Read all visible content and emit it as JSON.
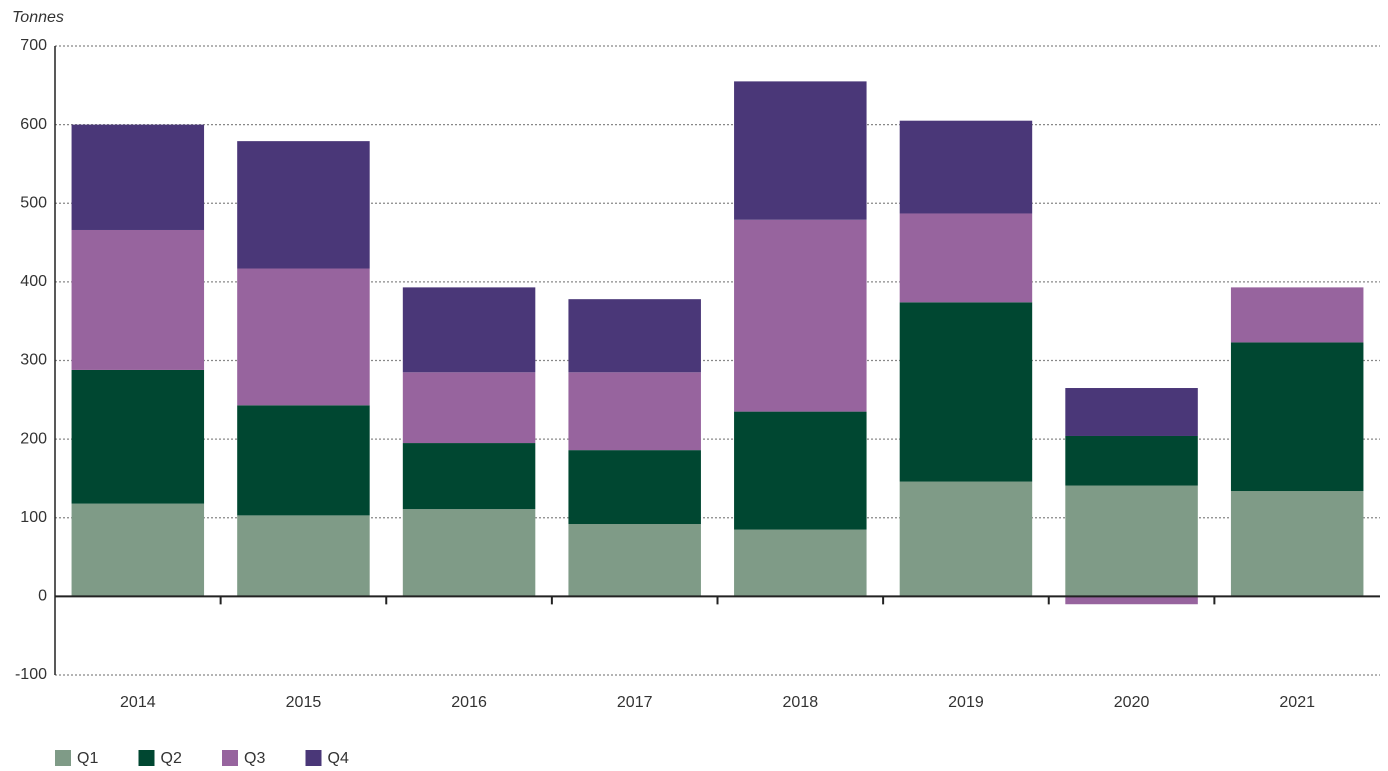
{
  "chart_data": {
    "type": "bar",
    "stacked": true,
    "y_label": "Tonnes",
    "categories": [
      "2014",
      "2015",
      "2016",
      "2017",
      "2018",
      "2019",
      "2020",
      "2021"
    ],
    "series": [
      {
        "name": "Q1",
        "color": "#7f9b87",
        "values": [
          118,
          103,
          111,
          92,
          85,
          146,
          141,
          134
        ]
      },
      {
        "name": "Q2",
        "color": "#004731",
        "values": [
          170,
          140,
          84,
          94,
          150,
          228,
          63,
          189
        ]
      },
      {
        "name": "Q3",
        "color": "#97649e",
        "values": [
          178,
          174,
          90,
          99,
          244,
          113,
          -10,
          70
        ]
      },
      {
        "name": "Q4",
        "color": "#4a3778",
        "values": [
          134,
          162,
          108,
          93,
          176,
          118,
          61,
          null
        ]
      }
    ],
    "ylim": [
      -100,
      700
    ],
    "yticks": [
      -100,
      0,
      100,
      200,
      300,
      400,
      500,
      600,
      700
    ],
    "grid": true
  }
}
